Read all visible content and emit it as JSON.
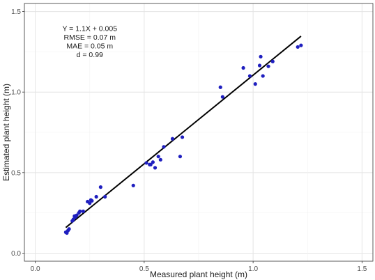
{
  "chart_data": {
    "type": "scatter",
    "xlabel": "Measured plant height (m)",
    "ylabel": "Estimated plant height (m)",
    "xlim": [
      -0.05,
      1.55
    ],
    "ylim": [
      -0.05,
      1.55
    ],
    "x_ticks": [
      0.0,
      0.5,
      1.0,
      1.5
    ],
    "x_tick_labels": [
      "0.0",
      "0.5",
      "1.0",
      "1.5"
    ],
    "y_ticks": [
      0.0,
      0.5,
      1.0,
      1.5
    ],
    "y_tick_labels": [
      "0.0",
      "0.5",
      "1.0",
      "1.5"
    ],
    "grid": true,
    "point_color": "#1f1fbf",
    "line_color": "#000000",
    "annotations": [
      "Y = 1.1X + 0.005",
      "RMSE = 0.07 m",
      "MAE = 0.05 m",
      "d = 0.99"
    ],
    "fit_line": {
      "slope": 1.1,
      "intercept": 0.005,
      "x_range": [
        0.14,
        1.22
      ]
    },
    "points": [
      [
        0.14,
        0.13
      ],
      [
        0.145,
        0.125
      ],
      [
        0.15,
        0.14
      ],
      [
        0.155,
        0.15
      ],
      [
        0.17,
        0.2
      ],
      [
        0.175,
        0.21
      ],
      [
        0.18,
        0.23
      ],
      [
        0.185,
        0.225
      ],
      [
        0.19,
        0.235
      ],
      [
        0.2,
        0.25
      ],
      [
        0.205,
        0.26
      ],
      [
        0.22,
        0.26
      ],
      [
        0.24,
        0.32
      ],
      [
        0.25,
        0.31
      ],
      [
        0.255,
        0.33
      ],
      [
        0.26,
        0.325
      ],
      [
        0.28,
        0.35
      ],
      [
        0.3,
        0.41
      ],
      [
        0.32,
        0.35
      ],
      [
        0.45,
        0.42
      ],
      [
        0.51,
        0.56
      ],
      [
        0.525,
        0.55
      ],
      [
        0.53,
        0.55
      ],
      [
        0.54,
        0.565
      ],
      [
        0.55,
        0.53
      ],
      [
        0.565,
        0.6
      ],
      [
        0.575,
        0.58
      ],
      [
        0.59,
        0.66
      ],
      [
        0.63,
        0.71
      ],
      [
        0.665,
        0.6
      ],
      [
        0.675,
        0.72
      ],
      [
        0.85,
        1.03
      ],
      [
        0.86,
        0.97
      ],
      [
        0.955,
        1.15
      ],
      [
        0.985,
        1.1
      ],
      [
        1.01,
        1.05
      ],
      [
        1.03,
        1.165
      ],
      [
        1.035,
        1.22
      ],
      [
        1.045,
        1.1
      ],
      [
        1.07,
        1.16
      ],
      [
        1.09,
        1.19
      ],
      [
        1.205,
        1.28
      ],
      [
        1.22,
        1.29
      ]
    ]
  }
}
